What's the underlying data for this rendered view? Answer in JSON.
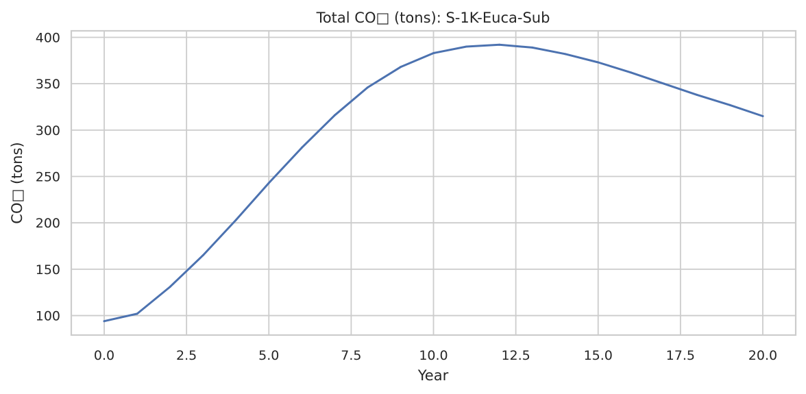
{
  "chart_data": {
    "type": "line",
    "title": "Total CO□ (tons): S-1K-Euca-Sub",
    "xlabel": "Year",
    "ylabel": "CO□ (tons)",
    "xlim": [
      -1,
      21
    ],
    "ylim": [
      79,
      407
    ],
    "xticks": [
      0.0,
      2.5,
      5.0,
      7.5,
      10.0,
      12.5,
      15.0,
      17.5,
      20.0
    ],
    "xtick_labels": [
      "0.0",
      "2.5",
      "5.0",
      "7.5",
      "10.0",
      "12.5",
      "15.0",
      "17.5",
      "20.0"
    ],
    "yticks": [
      100,
      150,
      200,
      250,
      300,
      350,
      400
    ],
    "ytick_labels": [
      "100",
      "150",
      "200",
      "250",
      "300",
      "350",
      "400"
    ],
    "grid": true,
    "line_color": "#4c72b0",
    "series": [
      {
        "x": [
          0,
          1,
          2,
          3,
          4,
          5,
          6,
          7,
          8,
          9,
          10,
          11,
          12,
          13,
          14,
          15,
          16,
          17,
          18,
          19,
          20
        ],
        "values": [
          94,
          102,
          131,
          165,
          203,
          243,
          281,
          316,
          346,
          368,
          383,
          390,
          392,
          389,
          382,
          373,
          362,
          350,
          338,
          327,
          315
        ]
      }
    ]
  }
}
